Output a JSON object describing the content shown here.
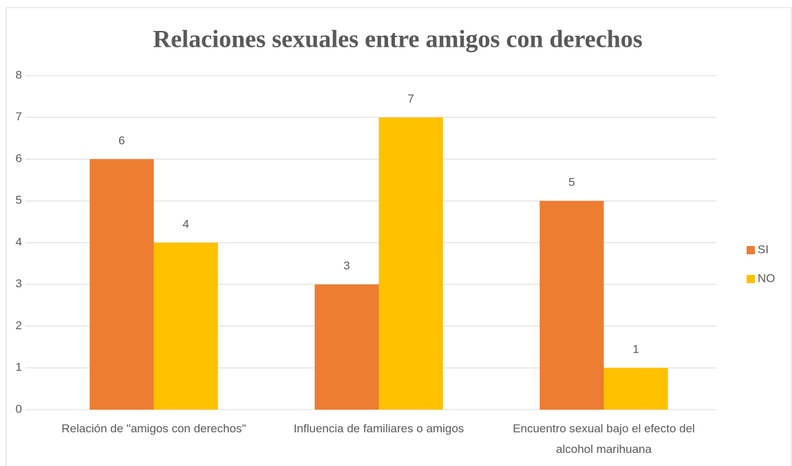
{
  "chart_data": {
    "type": "bar",
    "title": "Relaciones sexuales entre amigos con derechos",
    "categories": [
      "Relación de \"amigos con derechos\"",
      "Influencia de familiares o amigos",
      "Encuentro sexual bajo el efecto del alcohol marihuana"
    ],
    "series": [
      {
        "name": "SI",
        "color": "#ed7d31",
        "values": [
          6,
          3,
          5
        ]
      },
      {
        "name": "NO",
        "color": "#ffc000",
        "values": [
          4,
          7,
          1
        ]
      }
    ],
    "ylim": [
      0,
      8
    ],
    "yticks": [
      0,
      1,
      2,
      3,
      4,
      5,
      6,
      7,
      8
    ],
    "grid": true,
    "legend": "right"
  }
}
